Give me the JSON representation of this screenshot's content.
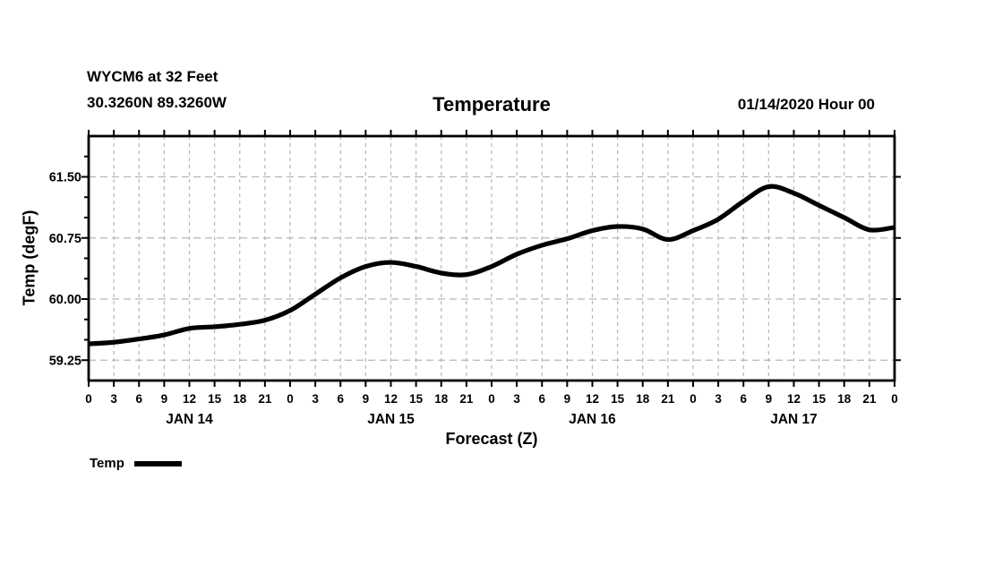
{
  "header": {
    "station_line1": "WYCM6 at 32 Feet",
    "station_line2": "30.3260N 89.3260W",
    "title": "Temperature",
    "run_info": "01/14/2020 Hour 00"
  },
  "axes": {
    "ylabel": "Temp (degF)",
    "xlabel": "Forecast (Z)"
  },
  "legend": {
    "label": "Temp"
  },
  "colors": {
    "line": "#000000",
    "grid": "#b6b6b6",
    "frame": "#000000",
    "text": "#000000",
    "background": "#ffffff"
  },
  "chart_data": {
    "type": "line",
    "title": "Temperature",
    "xlabel": "Forecast (Z)",
    "ylabel": "Temp (degF)",
    "xlim": [
      0,
      96
    ],
    "ylim": [
      59.0,
      62.0
    ],
    "x_hours": [
      0,
      3,
      6,
      9,
      12,
      15,
      18,
      21,
      24,
      27,
      30,
      33,
      36,
      39,
      42,
      45,
      48,
      51,
      54,
      57,
      60,
      63,
      66,
      69,
      72,
      75,
      78,
      81,
      84,
      87,
      90,
      93,
      96
    ],
    "x_tick_labels": [
      "0",
      "3",
      "6",
      "9",
      "12",
      "15",
      "18",
      "21",
      "0",
      "3",
      "6",
      "9",
      "12",
      "15",
      "18",
      "21",
      "0",
      "3",
      "6",
      "9",
      "12",
      "15",
      "18",
      "21",
      "0",
      "3",
      "6",
      "9",
      "12",
      "15",
      "18",
      "21",
      "0"
    ],
    "day_labels": [
      {
        "text": "JAN 14",
        "hour": 12
      },
      {
        "text": "JAN 15",
        "hour": 36
      },
      {
        "text": "JAN 16",
        "hour": 60
      },
      {
        "text": "JAN 17",
        "hour": 84
      }
    ],
    "y_major_ticks": [
      59.25,
      60.0,
      60.75,
      61.5
    ],
    "y_major_tick_labels": [
      "59.25",
      "60.00",
      "60.75",
      "61.50"
    ],
    "y_minor_step": 0.25,
    "x_tick_step": 3,
    "grid": "dashed",
    "legend_position": "bottom-left",
    "series": [
      {
        "name": "Temp",
        "color": "#000000",
        "values": [
          59.45,
          59.47,
          59.51,
          59.56,
          59.64,
          59.66,
          59.69,
          59.74,
          59.86,
          60.06,
          60.26,
          60.4,
          60.45,
          60.4,
          60.32,
          60.3,
          60.4,
          60.55,
          60.66,
          60.74,
          60.84,
          60.89,
          60.86,
          60.73,
          60.84,
          60.98,
          61.2,
          61.38,
          61.3,
          61.15,
          61.0,
          60.85,
          60.88
        ]
      }
    ]
  }
}
